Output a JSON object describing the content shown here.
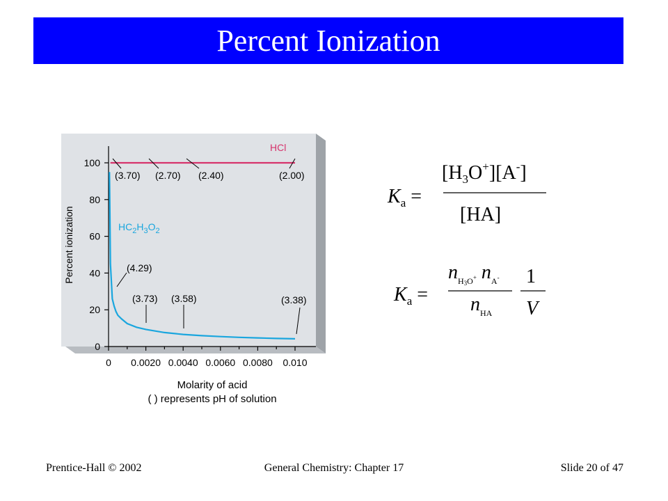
{
  "slide": {
    "title": "Percent Ionization",
    "footer_left": "Prentice-Hall © 2002",
    "footer_center": "General Chemistry: Chapter 17",
    "footer_right": "Slide 20 of 47"
  },
  "colors": {
    "title_bar": "#0000ff",
    "hcl_line": "#d6336c",
    "acetic_line": "#1aa6de",
    "panel_bg": "#dfe2e6",
    "panel_shadow": "#9ea3a8"
  },
  "chart_data": {
    "type": "line",
    "xlabel": "Molarity of acid",
    "xlabel_note": "( ) represents pH of solution",
    "ylabel": "Percent ionization",
    "xlim": [
      0,
      0.011
    ],
    "ylim": [
      0,
      100
    ],
    "x_ticks": [
      "0",
      "0.0020",
      "0.0040",
      "0.0060",
      "0.0080",
      "0.010"
    ],
    "y_ticks": [
      "0",
      "20",
      "40",
      "60",
      "80",
      "100"
    ],
    "series": [
      {
        "name": "HCl",
        "x": [
          0.0001,
          0.01
        ],
        "y": [
          100,
          100
        ]
      },
      {
        "name": "HC2H3O2",
        "x": [
          0.0002,
          0.0003,
          0.0004,
          0.0005,
          0.0007,
          0.001,
          0.0015,
          0.002,
          0.003,
          0.004,
          0.005,
          0.006,
          0.007,
          0.008,
          0.009,
          0.01
        ],
        "y": [
          26,
          22,
          19,
          17,
          15,
          12.5,
          10.5,
          9.3,
          7.6,
          6.6,
          5.9,
          5.4,
          5.0,
          4.7,
          4.4,
          4.2
        ]
      }
    ],
    "annotations": {
      "hcl": [
        "(3.70)",
        "(2.70)",
        "(2.40)",
        "(2.00)"
      ],
      "acetic": [
        "(4.29)",
        "(3.73)",
        "(3.58)",
        "(3.38)"
      ]
    }
  }
}
